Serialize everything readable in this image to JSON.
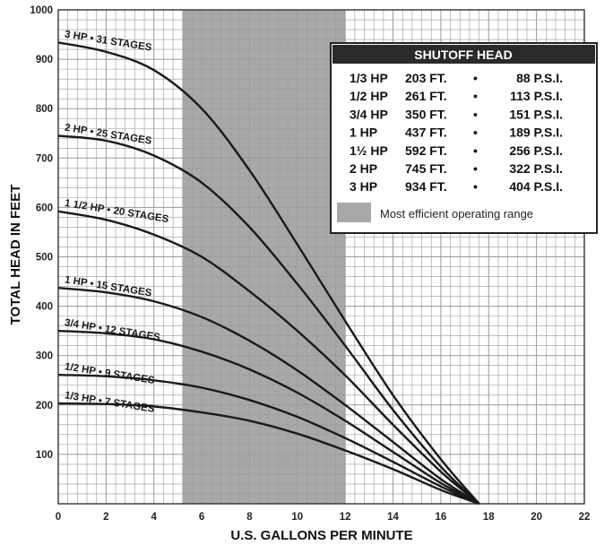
{
  "chart_data": {
    "type": "line",
    "title": "",
    "xlabel": "U.S. GALLONS PER MINUTE",
    "ylabel": "TOTAL HEAD IN FEET",
    "xlim": [
      0,
      22
    ],
    "ylim": [
      0,
      1000
    ],
    "xticks": [
      0,
      2,
      4,
      6,
      8,
      10,
      12,
      14,
      16,
      18,
      20,
      22
    ],
    "yticks": [
      100,
      200,
      300,
      400,
      500,
      600,
      700,
      800,
      900,
      1000
    ],
    "grid": true,
    "shaded_range": {
      "from": 5.2,
      "to": 12,
      "label": "Most efficient operating range",
      "color": "#a8a8a8"
    },
    "series": [
      {
        "name": "3 HP • 31 STAGES",
        "values": [
          [
            0,
            934
          ],
          [
            2,
            915
          ],
          [
            4,
            878
          ],
          [
            6,
            800
          ],
          [
            8,
            675
          ],
          [
            10,
            525
          ],
          [
            12,
            370
          ],
          [
            14,
            220
          ],
          [
            16,
            90
          ],
          [
            17.6,
            0
          ]
        ]
      },
      {
        "name": "2 HP • 25 STAGES",
        "values": [
          [
            0,
            745
          ],
          [
            2,
            735
          ],
          [
            4,
            705
          ],
          [
            6,
            650
          ],
          [
            8,
            560
          ],
          [
            10,
            445
          ],
          [
            12,
            320
          ],
          [
            14,
            190
          ],
          [
            16,
            75
          ],
          [
            17.6,
            0
          ]
        ]
      },
      {
        "name": "1 1/2 HP • 20 STAGES",
        "values": [
          [
            0,
            592
          ],
          [
            2,
            575
          ],
          [
            4,
            545
          ],
          [
            6,
            500
          ],
          [
            8,
            430
          ],
          [
            10,
            350
          ],
          [
            12,
            260
          ],
          [
            14,
            160
          ],
          [
            16,
            65
          ],
          [
            17.6,
            0
          ]
        ]
      },
      {
        "name": "1 HP • 15 STAGES",
        "values": [
          [
            0,
            437
          ],
          [
            2,
            428
          ],
          [
            4,
            410
          ],
          [
            6,
            378
          ],
          [
            8,
            330
          ],
          [
            10,
            270
          ],
          [
            12,
            200
          ],
          [
            14,
            125
          ],
          [
            16,
            50
          ],
          [
            17.6,
            0
          ]
        ]
      },
      {
        "name": "3/4 HP • 12 STAGES",
        "values": [
          [
            0,
            350
          ],
          [
            2,
            345
          ],
          [
            4,
            333
          ],
          [
            6,
            308
          ],
          [
            8,
            272
          ],
          [
            10,
            225
          ],
          [
            12,
            168
          ],
          [
            14,
            105
          ],
          [
            16,
            42
          ],
          [
            17.6,
            0
          ]
        ]
      },
      {
        "name": "1/2 HP • 9 STAGES",
        "values": [
          [
            0,
            261
          ],
          [
            2,
            258
          ],
          [
            4,
            250
          ],
          [
            6,
            235
          ],
          [
            8,
            210
          ],
          [
            10,
            176
          ],
          [
            12,
            133
          ],
          [
            14,
            85
          ],
          [
            16,
            35
          ],
          [
            17.6,
            0
          ]
        ]
      },
      {
        "name": "1/3 HP • 7 STAGES",
        "values": [
          [
            0,
            203
          ],
          [
            2,
            202
          ],
          [
            4,
            197
          ],
          [
            6,
            185
          ],
          [
            8,
            168
          ],
          [
            10,
            142
          ],
          [
            12,
            108
          ],
          [
            14,
            70
          ],
          [
            16,
            28
          ],
          [
            17.6,
            0
          ]
        ]
      }
    ]
  },
  "legend": {
    "title": "SHUTOFF HEAD",
    "rows": [
      {
        "hp": "1/3 HP",
        "ft": "203 FT.",
        "dot": "•",
        "psi": "88 P.S.I."
      },
      {
        "hp": "1/2 HP",
        "ft": "261 FT.",
        "dot": "•",
        "psi": "113 P.S.I."
      },
      {
        "hp": "3/4 HP",
        "ft": "350 FT.",
        "dot": "•",
        "psi": "151 P.S.I."
      },
      {
        "hp": "1 HP",
        "ft": "437 FT.",
        "dot": "•",
        "psi": "189 P.S.I."
      },
      {
        "hp": "1½ HP",
        "ft": "592 FT.",
        "dot": "•",
        "psi": "256 P.S.I."
      },
      {
        "hp": "2 HP",
        "ft": "745 FT.",
        "dot": "•",
        "psi": "322 P.S.I."
      },
      {
        "hp": "3 HP",
        "ft": "934 FT.",
        "dot": "•",
        "psi": "404 P.S.I."
      }
    ],
    "note": "Most efficient operating range"
  },
  "colors": {
    "grid": "#9a9a9a",
    "shade": "#a8a8a8",
    "curve": "#1a1a1a",
    "legend_header": "#2a2a2a"
  }
}
